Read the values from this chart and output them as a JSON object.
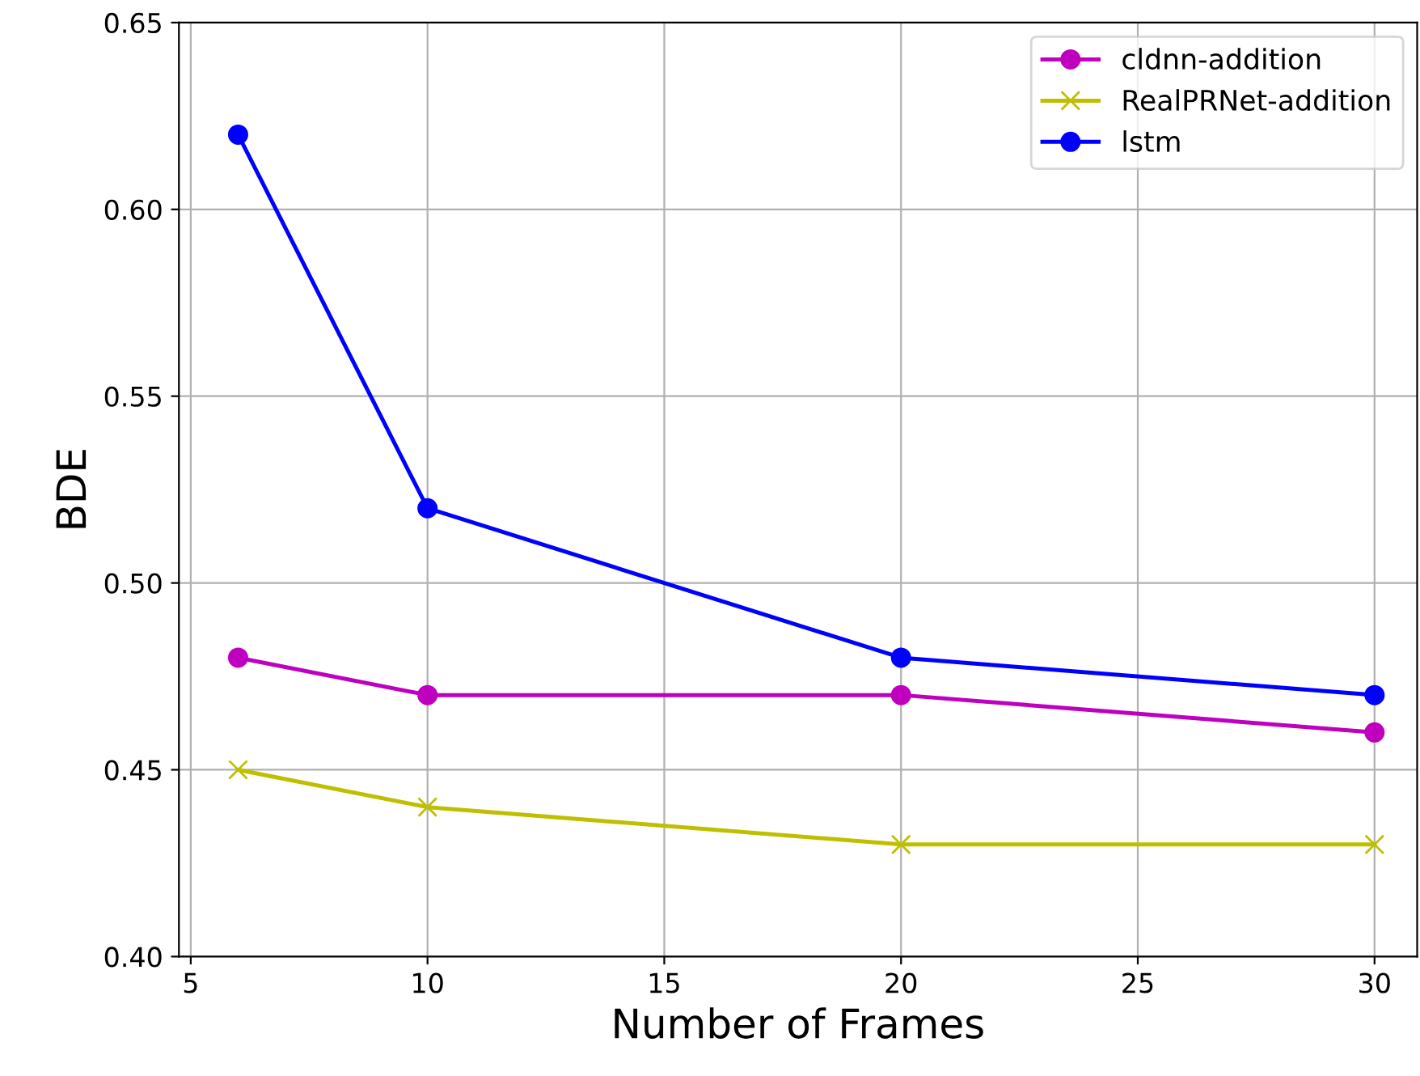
{
  "chart_data": {
    "type": "line",
    "xlabel": "Number of Frames",
    "ylabel": "BDE",
    "x": [
      6,
      10,
      20,
      30
    ],
    "series": [
      {
        "name": "cldnn-addition",
        "color": "#bf00bf",
        "marker": "circle",
        "values": [
          0.48,
          0.47,
          0.47,
          0.46
        ]
      },
      {
        "name": "RealPRNet-addition",
        "color": "#bfbf00",
        "marker": "cross",
        "values": [
          0.45,
          0.44,
          0.43,
          0.43
        ]
      },
      {
        "name": "lstm",
        "color": "#0000ff",
        "marker": "circle",
        "values": [
          0.62,
          0.52,
          0.48,
          0.47
        ]
      }
    ],
    "xlim": [
      4.75,
      30.9
    ],
    "xticks": [
      5,
      10,
      15,
      20,
      25,
      30
    ],
    "ylim": [
      0.4,
      0.65
    ],
    "yticks": [
      {
        "value": 0.4,
        "label": "0.40"
      },
      {
        "value": 0.45,
        "label": "0.45"
      },
      {
        "value": 0.5,
        "label": "0.50"
      },
      {
        "value": 0.55,
        "label": "0.55"
      },
      {
        "value": 0.6,
        "label": "0.60"
      },
      {
        "value": 0.65,
        "label": "0.65"
      }
    ],
    "grid": true,
    "legend": "top right",
    "line_style": "solid"
  }
}
